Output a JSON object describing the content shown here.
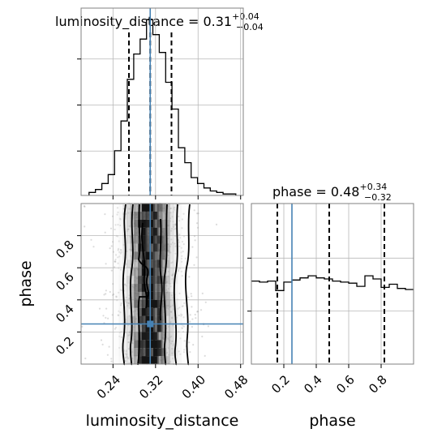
{
  "chart_data": {
    "type": "corner",
    "parameters": [
      "luminosity_distance",
      "phase"
    ],
    "titles": {
      "luminosity_distance": {
        "prefix": "luminosity_distance = ",
        "median": "0.31",
        "upper": "+0.04",
        "lower": "−0.04"
      },
      "phase": {
        "prefix": "phase = ",
        "median": "0.48",
        "upper": "+0.34",
        "lower": "−0.32"
      }
    },
    "axis_labels": {
      "x_left": "luminosity_distance",
      "x_right": "phase",
      "y": "phase"
    },
    "ranges": {
      "luminosity_distance": [
        0.18,
        0.485
      ],
      "phase": [
        0.0,
        1.0
      ]
    },
    "ticks": {
      "luminosity_distance": [
        "0.24",
        "0.32",
        "0.40",
        "0.48"
      ],
      "phase": [
        "0.2",
        "0.4",
        "0.6",
        "0.8"
      ]
    },
    "truth": {
      "luminosity_distance": 0.31,
      "phase": 0.25
    },
    "quantiles": {
      "luminosity_distance": [
        0.27,
        0.31,
        0.35
      ],
      "phase": [
        0.16,
        0.48,
        0.82
      ]
    },
    "hist_luminosity_distance": {
      "bin_edges": [
        0.195,
        0.207,
        0.219,
        0.231,
        0.243,
        0.255,
        0.267,
        0.279,
        0.291,
        0.303,
        0.315,
        0.327,
        0.339,
        0.351,
        0.363,
        0.375,
        0.387,
        0.399,
        0.411,
        0.423,
        0.435,
        0.447,
        0.459,
        0.471
      ],
      "counts": [
        2,
        4,
        8,
        14,
        30,
        50,
        78,
        95,
        105,
        118,
        108,
        96,
        76,
        58,
        32,
        22,
        12,
        8,
        5,
        3,
        2,
        1,
        1
      ]
    },
    "hist_phase": {
      "bin_edges": [
        0.0,
        0.05,
        0.1,
        0.15,
        0.2,
        0.25,
        0.3,
        0.35,
        0.4,
        0.45,
        0.5,
        0.55,
        0.6,
        0.65,
        0.7,
        0.75,
        0.8,
        0.85,
        0.9,
        0.95,
        1.0
      ],
      "counts": [
        79,
        78,
        79,
        70,
        78,
        80,
        82,
        84,
        82,
        81,
        79,
        78,
        77,
        74,
        84,
        81,
        73,
        76,
        72,
        71
      ]
    },
    "grid": true
  }
}
